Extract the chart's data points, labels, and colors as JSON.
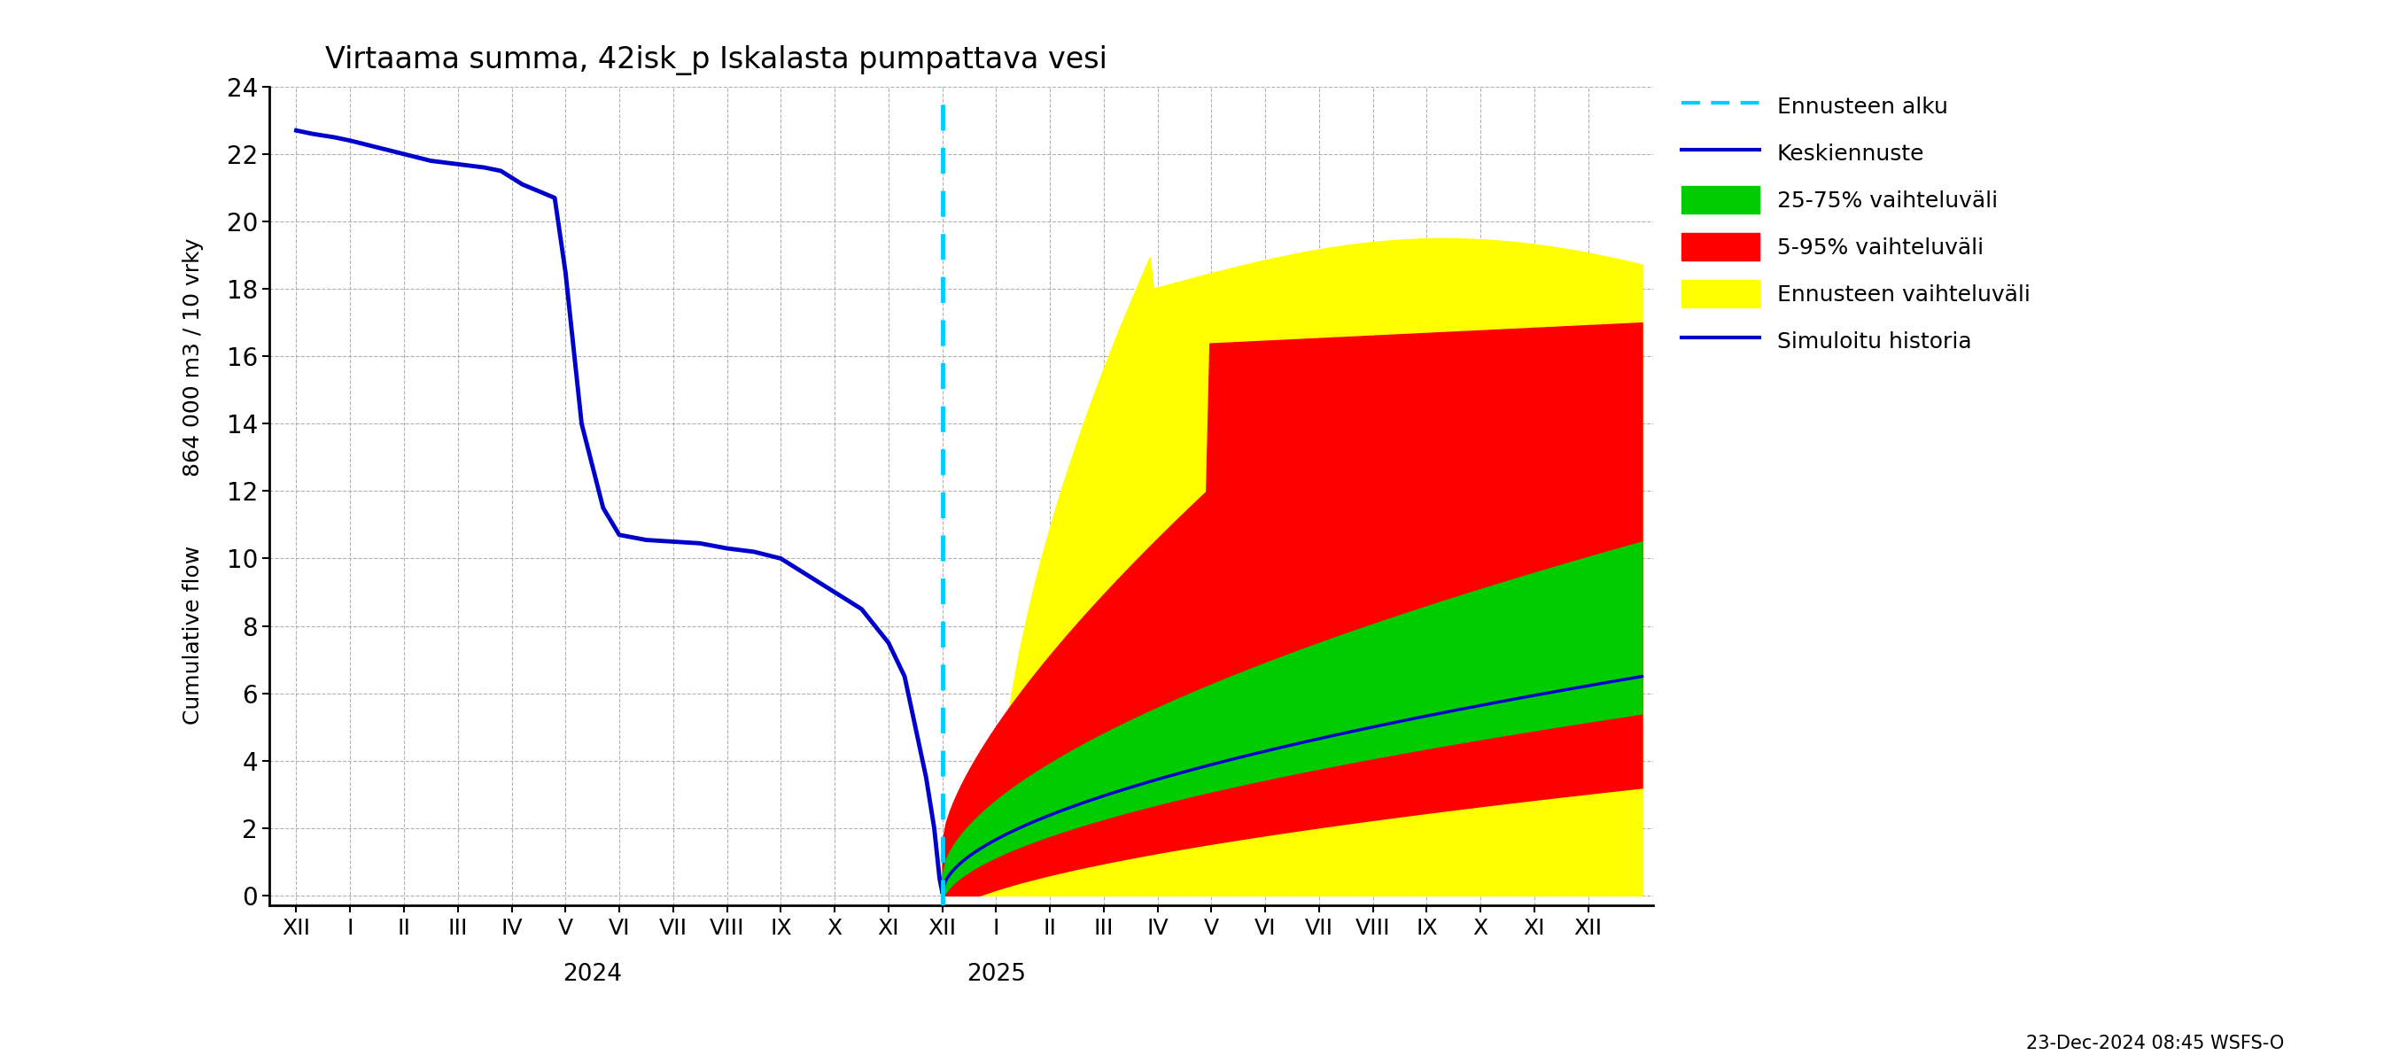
{
  "title": "Virtaama summa, 42isk_p Iskalasta pumpattava vesi",
  "ylabel_top": "864 000 m3 / 10 vrky",
  "ylabel_bottom": "Cumulative flow",
  "ylim": [
    -0.3,
    24
  ],
  "yticks": [
    0,
    2,
    4,
    6,
    8,
    10,
    12,
    14,
    16,
    18,
    20,
    22,
    24
  ],
  "footnote": "23-Dec-2024 08:45 WSFS-O",
  "background_color": "#ffffff",
  "grid_color": "#aaaaaa",
  "hist_color": "#0000cc",
  "median_color": "#0000cc",
  "cyan_color": "#00ccff",
  "green_color": "#00cc00",
  "red_color": "#ff0000",
  "yellow_color": "#ffff00"
}
